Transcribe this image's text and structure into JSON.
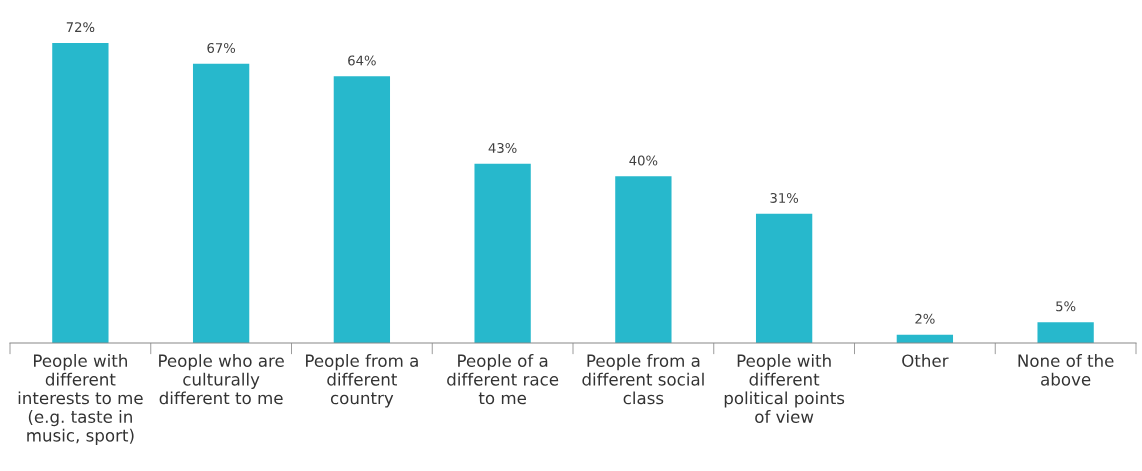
{
  "chart_data": {
    "type": "bar",
    "categories": [
      "People with\ndifferent\ninterests to me\n(e.g. taste in\nmusic, sport)",
      "People who are\nculturally\ndifferent to me",
      "People from a\ndifferent\ncountry",
      "People of a\ndifferent race\nto me",
      "People from a\ndifferent social\nclass",
      "People with\ndifferent\npolitical points\nof view",
      "Other",
      "None of the\nabove"
    ],
    "values": [
      72,
      67,
      64,
      43,
      40,
      31,
      2,
      5
    ],
    "value_labels": [
      "72%",
      "67%",
      "64%",
      "43%",
      "40%",
      "31%",
      "2%",
      "5%"
    ],
    "color": "#27b8cc"
  }
}
